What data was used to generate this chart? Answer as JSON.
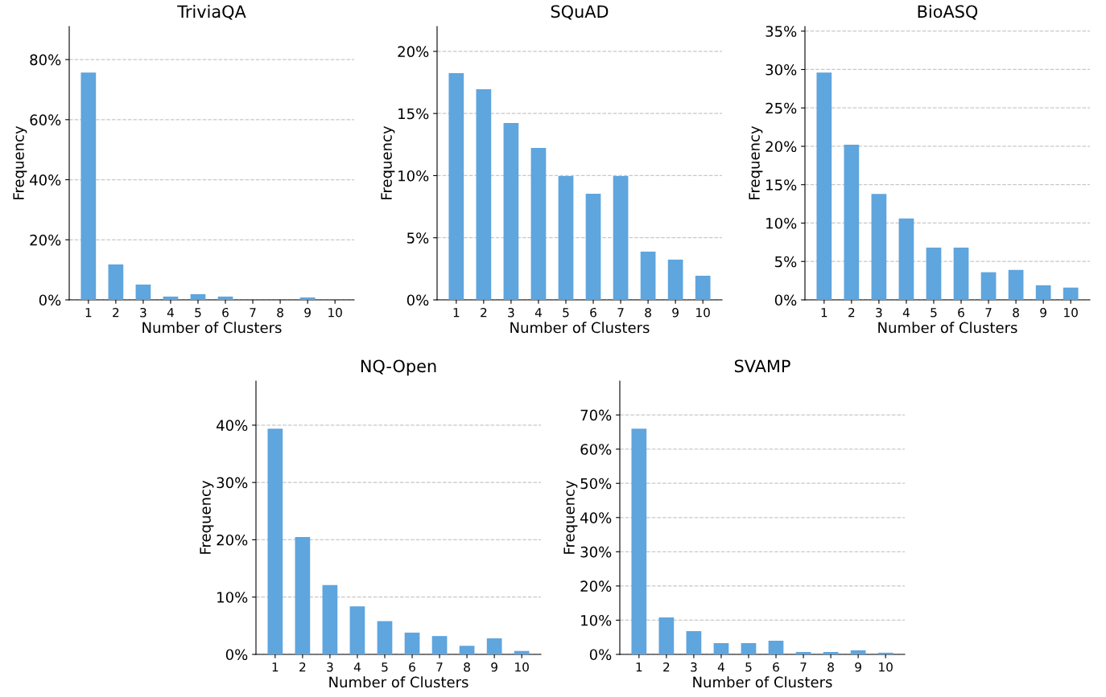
{
  "chart_data": [
    {
      "type": "bar",
      "title": "TriviaQA",
      "xlabel": "Number of Clusters",
      "ylabel": "Frequency",
      "categories": [
        "1",
        "2",
        "3",
        "4",
        "5",
        "6",
        "7",
        "8",
        "9",
        "10"
      ],
      "color": "#5fa5de",
      "values": [
        75.7,
        11.8,
        5.1,
        1.1,
        1.9,
        1.1,
        0,
        0,
        0.8,
        0
      ],
      "ylim": [
        0,
        91
      ],
      "yticks": [
        {
          "value": 0,
          "label": "0%"
        },
        {
          "value": 20,
          "label": "20%"
        },
        {
          "value": 40,
          "label": "40%"
        },
        {
          "value": 60,
          "label": "60%"
        },
        {
          "value": 80,
          "label": "80%"
        }
      ],
      "grid": "y"
    },
    {
      "type": "bar",
      "title": "SQuAD",
      "xlabel": "Number of Clusters",
      "ylabel": "Frequency",
      "categories": [
        "1",
        "2",
        "3",
        "4",
        "5",
        "6",
        "7",
        "8",
        "9",
        "10"
      ],
      "color": "#5fa5de",
      "values": [
        18.25,
        16.95,
        14.24,
        12.23,
        9.97,
        8.54,
        9.97,
        3.88,
        3.24,
        1.94
      ],
      "ylim": [
        0,
        22
      ],
      "yticks": [
        {
          "value": 0,
          "label": "0%"
        },
        {
          "value": 5,
          "label": "5%"
        },
        {
          "value": 10,
          "label": "10%"
        },
        {
          "value": 15,
          "label": "15%"
        },
        {
          "value": 20,
          "label": "20%"
        }
      ],
      "grid": "y"
    },
    {
      "type": "bar",
      "title": "BioASQ",
      "xlabel": "Number of Clusters",
      "ylabel": "Frequency",
      "categories": [
        "1",
        "2",
        "3",
        "4",
        "5",
        "6",
        "7",
        "8",
        "9",
        "10"
      ],
      "color": "#5fa5de",
      "values": [
        29.6,
        20.2,
        13.8,
        10.6,
        6.8,
        6.8,
        3.6,
        3.9,
        1.9,
        1.6
      ],
      "ylim": [
        0,
        35.6
      ],
      "yticks": [
        {
          "value": 0,
          "label": "0%"
        },
        {
          "value": 5,
          "label": "5%"
        },
        {
          "value": 10,
          "label": "10%"
        },
        {
          "value": 15,
          "label": "15%"
        },
        {
          "value": 20,
          "label": "20%"
        },
        {
          "value": 25,
          "label": "25%"
        },
        {
          "value": 30,
          "label": "30%"
        },
        {
          "value": 35,
          "label": "35%"
        }
      ],
      "grid": "y"
    },
    {
      "type": "bar",
      "title": "NQ-Open",
      "xlabel": "Number of Clusters",
      "ylabel": "Frequency",
      "categories": [
        "1",
        "2",
        "3",
        "4",
        "5",
        "6",
        "7",
        "8",
        "9",
        "10"
      ],
      "color": "#5fa5de",
      "values": [
        39.4,
        20.5,
        12.1,
        8.4,
        5.8,
        3.8,
        3.2,
        1.5,
        2.8,
        0.6
      ],
      "ylim": [
        0,
        47.7
      ],
      "yticks": [
        {
          "value": 0,
          "label": "0%"
        },
        {
          "value": 10,
          "label": "10%"
        },
        {
          "value": 20,
          "label": "20%"
        },
        {
          "value": 30,
          "label": "30%"
        },
        {
          "value": 40,
          "label": "40%"
        }
      ],
      "grid": "y"
    },
    {
      "type": "bar",
      "title": "SVAMP",
      "xlabel": "Number of Clusters",
      "ylabel": "Frequency",
      "categories": [
        "1",
        "2",
        "3",
        "4",
        "5",
        "6",
        "7",
        "8",
        "9",
        "10"
      ],
      "color": "#5fa5de",
      "values": [
        66.0,
        10.8,
        6.8,
        3.3,
        3.3,
        4.0,
        0.7,
        0.7,
        1.2,
        0.5
      ],
      "ylim": [
        0,
        79.9
      ],
      "yticks": [
        {
          "value": 0,
          "label": "0%"
        },
        {
          "value": 10,
          "label": "10%"
        },
        {
          "value": 20,
          "label": "20%"
        },
        {
          "value": 30,
          "label": "30%"
        },
        {
          "value": 40,
          "label": "40%"
        },
        {
          "value": 50,
          "label": "50%"
        },
        {
          "value": 60,
          "label": "60%"
        },
        {
          "value": 70,
          "label": "70%"
        }
      ],
      "grid": "y"
    }
  ]
}
